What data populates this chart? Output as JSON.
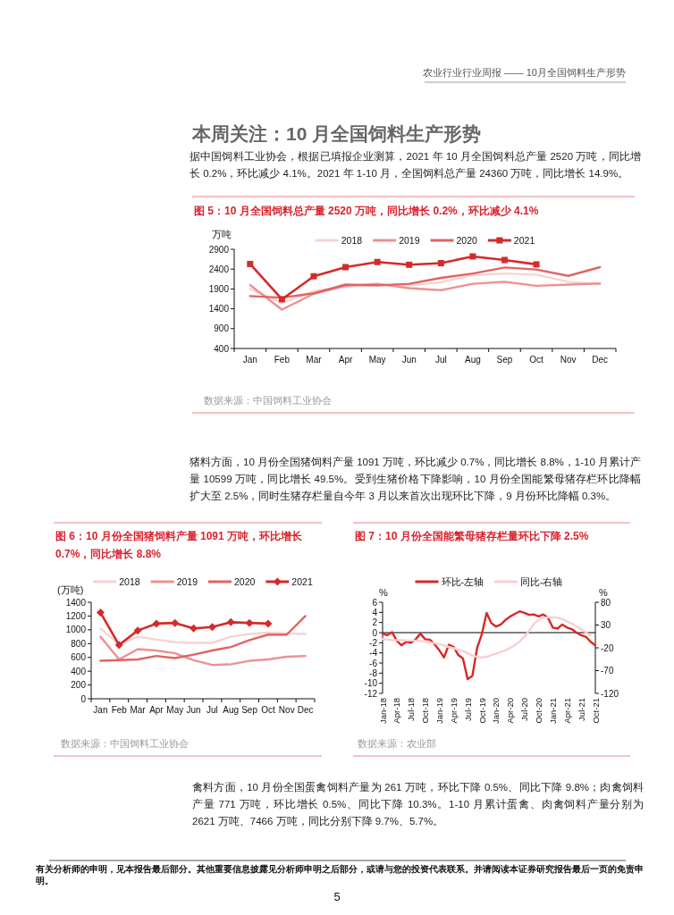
{
  "chart_data": [
    {
      "type": "other",
      "title": "本周关注：10 月全国饲料生产形势",
      "annotations": [
        "农业行业行业周报 —— 10月全国饲料生产形势",
        "据中国饲料工业协会，根据已填报企业测算，2021 年 10 月全国饲料总产量 2520 万吨，同比增长 0.2%，环比减少 4.1%。2021 年 1-10 月，全国饲料总产量 24360 万吨，同比增长 14.9%。"
      ]
    },
    {
      "type": "line",
      "title": "图 5：10 月全国饲料总产量 2520 万吨，同比增长 0.2%，环比减少 4.1%",
      "ylabel": "万吨",
      "categories": [
        "Jan",
        "Feb",
        "Mar",
        "Apr",
        "May",
        "Jun",
        "Jul",
        "Aug",
        "Sep",
        "Oct",
        "Nov",
        "Dec"
      ],
      "ylim": [
        400,
        2900
      ],
      "yticks": [
        400,
        900,
        1400,
        1900,
        2400,
        2900
      ],
      "legend": "top",
      "grid": false,
      "series": [
        {
          "name": "2018",
          "color": "#f8d3d3",
          "values": [
            1900,
            1550,
            1840,
            1960,
            1990,
            1990,
            2070,
            2250,
            2290,
            2260,
            2080,
            2020
          ]
        },
        {
          "name": "2019",
          "color": "#ee9090",
          "values": [
            2000,
            1380,
            1780,
            1980,
            2030,
            1920,
            1870,
            2030,
            2080,
            1980,
            2010,
            2040
          ]
        },
        {
          "name": "2020",
          "color": "#e06464",
          "values": [
            1720,
            1680,
            1790,
            2010,
            1990,
            2030,
            2180,
            2290,
            2440,
            2390,
            2230,
            2450
          ]
        },
        {
          "name": "2021",
          "color": "#d42a2a",
          "marker": "square",
          "values": [
            2530,
            1640,
            2220,
            2450,
            2580,
            2510,
            2550,
            2720,
            2630,
            2520,
            null,
            null
          ]
        }
      ],
      "annotations": [
        "数据来源：中国饲料工业协会"
      ]
    },
    {
      "type": "other",
      "annotations": [
        "猪料方面，10 月份全国猪饲料产量 1091 万吨，环比减少 0.7%，同比增长 8.8%，1-10 月累计产量 10599 万吨，同比增长 49.5%。受到生猪价格下降影响，10 月份全国能繁母猪存栏环比降幅扩大至 2.5%，同时生猪存栏量自今年 3 月以来首次出现环比下降，9 月份环比降幅 0.3%。"
      ]
    },
    {
      "type": "line",
      "title": "图 6：10 月份全国猪饲料产量 1091 万吨，环比增长 0.7%，同比增长 8.8%",
      "ylabel": "(万吨)",
      "categories": [
        "Jan",
        "Feb",
        "Mar",
        "Apr",
        "May",
        "Jun",
        "Jul",
        "Aug",
        "Sep",
        "Oct",
        "Nov",
        "Dec"
      ],
      "ylim": [
        0,
        1400
      ],
      "yticks": [
        0,
        200,
        400,
        600,
        800,
        1000,
        1200,
        1400
      ],
      "legend": "top",
      "grid": false,
      "series": [
        {
          "name": "2018",
          "color": "#f8d3d3",
          "values": [
            1020,
            790,
            900,
            860,
            820,
            810,
            810,
            900,
            940,
            960,
            950,
            940
          ]
        },
        {
          "name": "2019",
          "color": "#ee9090",
          "values": [
            900,
            570,
            720,
            700,
            660,
            560,
            490,
            500,
            550,
            570,
            610,
            620
          ]
        },
        {
          "name": "2020",
          "color": "#e06464",
          "values": [
            550,
            560,
            570,
            620,
            590,
            640,
            700,
            750,
            850,
            930,
            930,
            1200
          ]
        },
        {
          "name": "2021",
          "color": "#d42a2a",
          "marker": "diamond",
          "values": [
            1250,
            780,
            990,
            1090,
            1100,
            1020,
            1040,
            1110,
            1100,
            1090,
            null,
            null
          ]
        }
      ],
      "annotations": [
        "数据来源：中国饲料工业协会"
      ]
    },
    {
      "type": "line",
      "title": "图 7：10 月份全国能繁母猪存栏量环比下降 2.5%",
      "ylabel": "%",
      "y2label": "%",
      "x": [
        "2018-01",
        "2018-02",
        "2018-03",
        "2018-04",
        "2018-05",
        "2018-06",
        "2018-07",
        "2018-08",
        "2018-09",
        "2018-10",
        "2018-11",
        "2018-12",
        "2019-01",
        "2019-02",
        "2019-03",
        "2019-04",
        "2019-05",
        "2019-06",
        "2019-07",
        "2019-08",
        "2019-09",
        "2019-10",
        "2019-11",
        "2019-12",
        "2020-01",
        "2020-02",
        "2020-03",
        "2020-04",
        "2020-05",
        "2020-06",
        "2020-07",
        "2020-08",
        "2020-09",
        "2020-10",
        "2020-11",
        "2020-12",
        "2021-01",
        "2021-02",
        "2021-03",
        "2021-04",
        "2021-05",
        "2021-06",
        "2021-07",
        "2021-08",
        "2021-09",
        "2021-10"
      ],
      "xlim": [
        "2018-01",
        "2021-10"
      ],
      "xticks": [
        {
          "value": "2018-01",
          "label": "Jan-18"
        },
        {
          "value": "2018-04",
          "label": "Apr-18"
        },
        {
          "value": "2018-07",
          "label": "Jul-18"
        },
        {
          "value": "2018-10",
          "label": "Oct-18"
        },
        {
          "value": "2019-01",
          "label": "Jan-19"
        },
        {
          "value": "2019-04",
          "label": "Apr-19"
        },
        {
          "value": "2019-07",
          "label": "Jul-19"
        },
        {
          "value": "2019-10",
          "label": "Oct-19"
        },
        {
          "value": "2020-01",
          "label": "Jan-20"
        },
        {
          "value": "2020-04",
          "label": "Apr-20"
        },
        {
          "value": "2020-07",
          "label": "Jul-20"
        },
        {
          "value": "2020-10",
          "label": "Oct-20"
        },
        {
          "value": "2021-01",
          "label": "Jan-21"
        },
        {
          "value": "2021-04",
          "label": "Apr-21"
        },
        {
          "value": "2021-07",
          "label": "Jul-21"
        },
        {
          "value": "2021-10",
          "label": "Oct-21"
        }
      ],
      "ylim": [
        -12,
        6
      ],
      "yticks": [
        -12,
        -10,
        -8,
        -6,
        -4,
        -2,
        0,
        2,
        4,
        6
      ],
      "y2lim": [
        -120,
        80
      ],
      "y2ticks": [
        -120,
        -70,
        -20,
        30,
        80
      ],
      "legend": "top",
      "grid": false,
      "ref_lines": [
        {
          "axis": "y",
          "value": 0,
          "color": "#000000"
        }
      ],
      "series": [
        {
          "name": "环比-左轴",
          "color": "#d42a2a",
          "values": [
            -0.2,
            -0.5,
            0.1,
            -1.6,
            -2.5,
            -1.8,
            -2.0,
            -1.3,
            -0.2,
            -1.3,
            -1.4,
            -2.3,
            -3.5,
            -4.9,
            -2.4,
            -2.8,
            -4.4,
            -5.1,
            -9.2,
            -8.5,
            -3.0,
            -0.3,
            3.9,
            1.9,
            1.2,
            1.6,
            2.5,
            3.2,
            3.7,
            4.2,
            3.9,
            3.5,
            3.6,
            3.2,
            3.6,
            2.9,
            1.0,
            0.8,
            1.6,
            1.0,
            0.7,
            0.0,
            -0.5,
            -0.8,
            -1.8,
            -2.5
          ]
        },
        {
          "name": "同比-右轴",
          "color": "#f8cfcf",
          "axis": "y2",
          "values": [
            -1,
            -2,
            -3,
            -3,
            -3,
            -4,
            -4,
            -4,
            -5,
            -6,
            -8,
            -10,
            -12,
            -15,
            -18,
            -21,
            -24,
            -27,
            -32,
            -37,
            -40,
            -41,
            -40,
            -36,
            -33,
            -29,
            -25,
            -20,
            -14,
            -6,
            4,
            18,
            32,
            42,
            46,
            47,
            47,
            46,
            43,
            38,
            33,
            27,
            21,
            14,
            7,
            null
          ]
        }
      ],
      "annotations": [
        "数据来源：农业部"
      ]
    },
    {
      "type": "other",
      "annotations": [
        "禽料方面，10 月份全国蛋禽饲料产量为 261 万吨，环比下降 0.5%、同比下降 9.8%；肉禽饲料产量 771 万吨，环比增长 0.5%、同比下降 10.3%。1-10 月累计蛋禽、肉禽饲料产量分别为 2621 万吨、7466 万吨，同比分别下降 9.7%、5.7%。",
        "有关分析师的申明，见本报告最后部分。其他重要信息披露见分析师申明之后部分，或请与您的投资代表联系。并请阅读本证券研究报告最后一页的免责申明。",
        "5"
      ]
    }
  ]
}
